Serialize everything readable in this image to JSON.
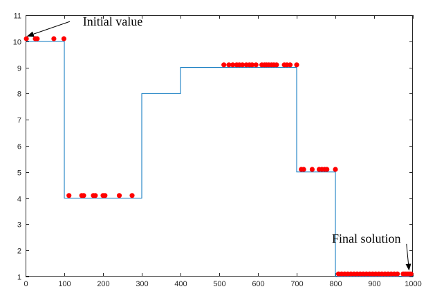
{
  "chart_data": {
    "type": "line",
    "title": "",
    "xlabel": "",
    "ylabel": "",
    "xlim": [
      0,
      1000
    ],
    "ylim": [
      1,
      11
    ],
    "xticks": [
      0,
      100,
      200,
      300,
      400,
      500,
      600,
      700,
      800,
      900,
      1000
    ],
    "yticks": [
      1,
      2,
      3,
      4,
      5,
      6,
      7,
      8,
      9,
      10,
      11
    ],
    "grid": false,
    "colors": {
      "line": "#0072bd",
      "points": "#ff0000",
      "axis": "#262626"
    },
    "series": [
      {
        "type": "step-line",
        "x": [
          0,
          100,
          100,
          300,
          300,
          400,
          400,
          700,
          700,
          800,
          800,
          1000
        ],
        "y": [
          10,
          10,
          4,
          4,
          8,
          8,
          9,
          9,
          5,
          5,
          1,
          1
        ]
      },
      {
        "type": "scatter",
        "x": [
          2,
          25,
          30,
          73,
          99,
          112,
          145,
          150,
          175,
          180,
          200,
          205,
          242,
          275,
          512,
          525,
          535,
          545,
          552,
          560,
          570,
          578,
          585,
          595,
          610,
          617,
          622,
          628,
          635,
          641,
          648,
          668,
          675,
          683,
          700,
          712,
          718,
          740,
          758,
          765,
          772,
          778,
          800,
          808,
          816,
          824,
          832,
          840,
          848,
          856,
          864,
          872,
          880,
          888,
          896,
          904,
          912,
          920,
          928,
          936,
          944,
          952,
          960,
          975,
          980,
          985,
          990,
          995
        ],
        "y": [
          10.1,
          10.1,
          10.1,
          10.1,
          10.1,
          4.1,
          4.1,
          4.1,
          4.1,
          4.1,
          4.1,
          4.1,
          4.1,
          4.1,
          9.1,
          9.1,
          9.1,
          9.1,
          9.1,
          9.1,
          9.1,
          9.1,
          9.1,
          9.1,
          9.1,
          9.1,
          9.1,
          9.1,
          9.1,
          9.1,
          9.1,
          9.1,
          9.1,
          9.1,
          9.1,
          5.1,
          5.1,
          5.1,
          5.1,
          5.1,
          5.1,
          5.1,
          5.1,
          1.1,
          1.1,
          1.1,
          1.1,
          1.1,
          1.1,
          1.1,
          1.1,
          1.1,
          1.1,
          1.1,
          1.1,
          1.1,
          1.1,
          1.1,
          1.1,
          1.1,
          1.1,
          1.1,
          1.1,
          1.1,
          1.1,
          1.1,
          1.1,
          1.1
        ]
      }
    ],
    "annotations": [
      {
        "text": "Initial value",
        "target": [
          5,
          10.2
        ],
        "text_at": [
          225,
          10.6
        ]
      },
      {
        "text": "Final solution",
        "target": [
          990,
          1.25
        ],
        "text_at": [
          880,
          2.3
        ]
      }
    ]
  }
}
